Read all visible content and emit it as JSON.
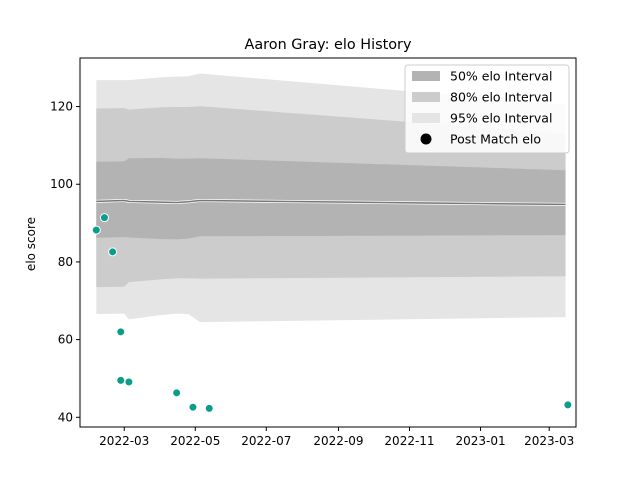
{
  "chart_data": {
    "type": "line",
    "title": "Aaron Gray: elo History",
    "xlabel": "",
    "ylabel": "elo score",
    "x_ticks": [
      "2022-03",
      "2022-05",
      "2022-07",
      "2022-09",
      "2022-11",
      "2023-01",
      "2023-03"
    ],
    "y_ticks": [
      40,
      60,
      80,
      100,
      120
    ],
    "xlim": [
      "2022-01-22",
      "2023-03-24"
    ],
    "ylim": [
      37.5,
      132.5
    ],
    "grid": false,
    "legend_position": "top-right",
    "legend": [
      {
        "label": "50% elo Interval",
        "color": "#b3b3b3",
        "kind": "band"
      },
      {
        "label": "80% elo Interval",
        "color": "#cccccc",
        "kind": "band"
      },
      {
        "label": "95% elo Interval",
        "color": "#e5e5e5",
        "kind": "band"
      },
      {
        "label": "Post Match elo",
        "color": "#000000",
        "kind": "point"
      }
    ],
    "band_x": [
      "2022-02-05",
      "2022-03-01",
      "2022-03-05",
      "2022-04-01",
      "2022-04-15",
      "2022-04-25",
      "2022-05-05",
      "2023-03-15"
    ],
    "mean": [
      95.6,
      95.8,
      95.6,
      95.4,
      95.3,
      95.5,
      95.8,
      94.8
    ],
    "band50": {
      "lower": [
        86.2,
        86.4,
        86.3,
        85.9,
        85.8,
        86.0,
        86.6,
        86.9
      ],
      "upper": [
        105.8,
        105.9,
        106.7,
        106.8,
        106.6,
        106.6,
        106.7,
        103.6
      ]
    },
    "band80": {
      "lower": [
        73.5,
        73.6,
        74.8,
        75.5,
        75.8,
        75.8,
        75.7,
        76.3
      ],
      "upper": [
        119.5,
        119.6,
        119.2,
        119.8,
        119.9,
        119.9,
        120.1,
        113.0
      ]
    },
    "band95": {
      "lower": [
        66.6,
        66.7,
        65.2,
        66.3,
        66.7,
        66.6,
        64.5,
        65.8
      ],
      "upper": [
        126.8,
        126.8,
        126.8,
        127.5,
        127.7,
        127.8,
        128.5,
        120.5
      ]
    },
    "post_match": {
      "color": "#0a9e8a",
      "x": [
        "2022-02-05",
        "2022-02-12",
        "2022-02-19",
        "2022-02-26",
        "2022-02-26",
        "2022-03-05",
        "2022-04-15",
        "2022-04-29",
        "2022-05-13",
        "2023-03-17"
      ],
      "y": [
        88.2,
        91.4,
        82.6,
        62.0,
        49.5,
        49.1,
        46.3,
        42.6,
        42.3,
        43.2
      ]
    }
  }
}
